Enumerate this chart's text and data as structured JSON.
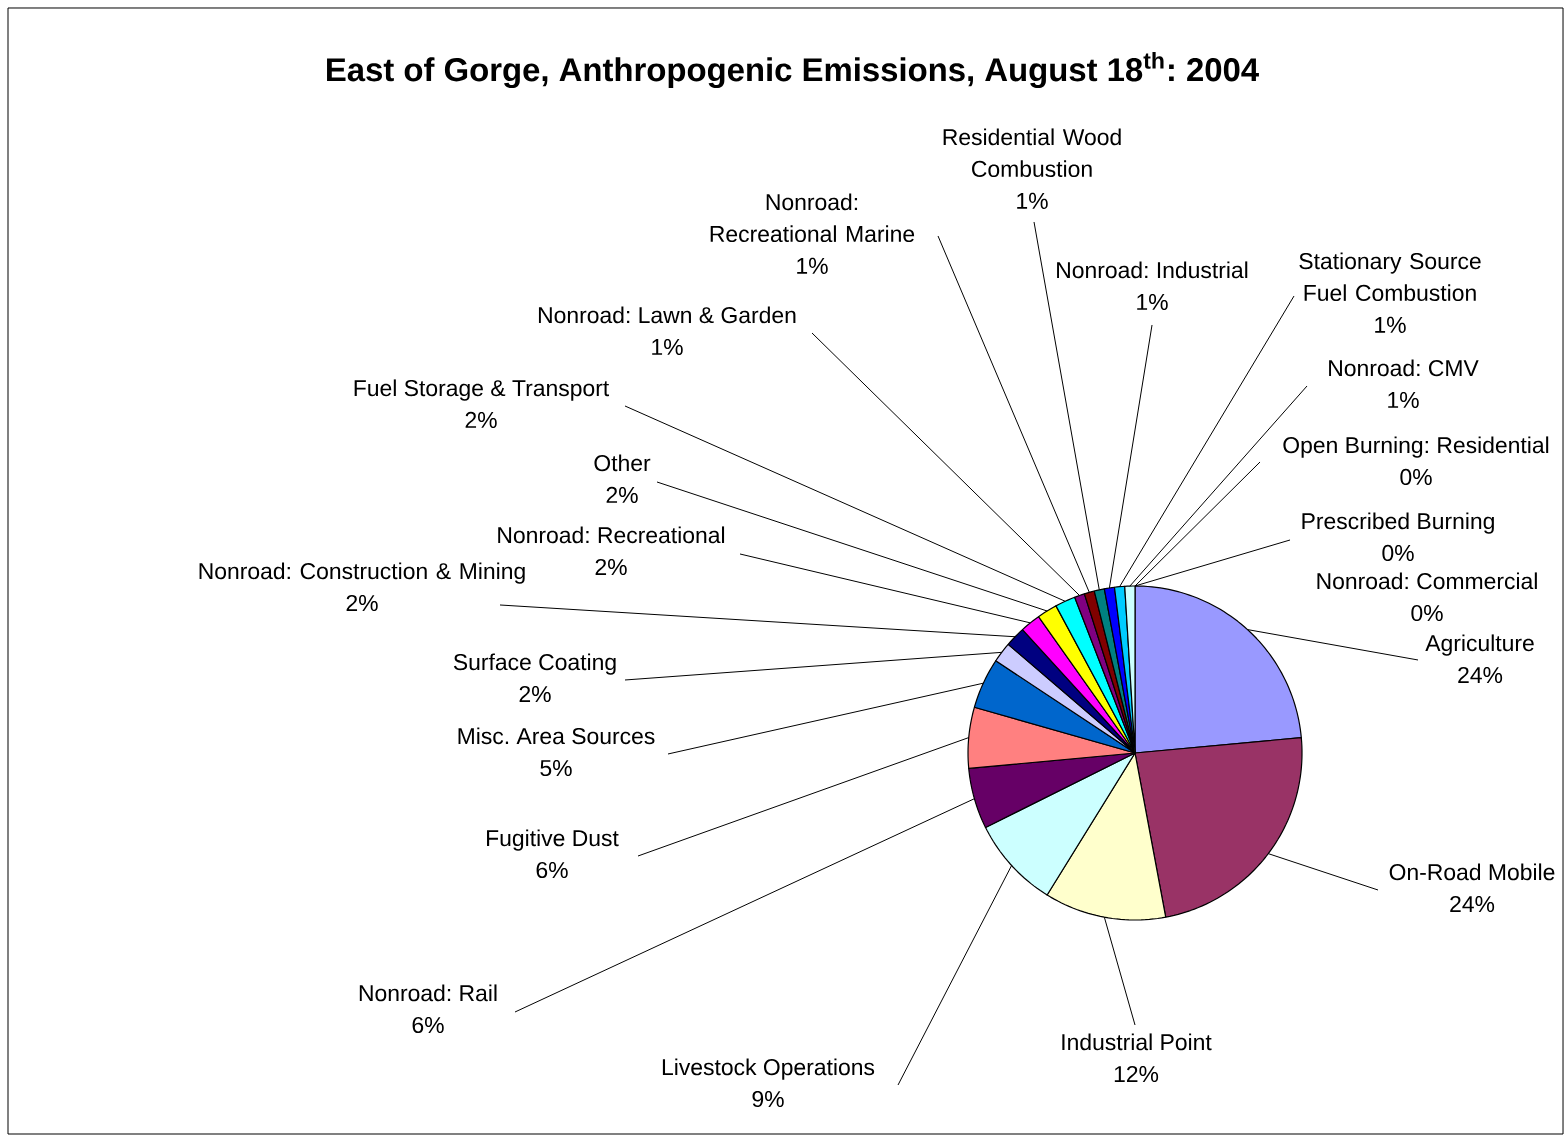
{
  "chart_data": {
    "type": "pie",
    "title": "East of Gorge, Anthropogenic Emissions, August 18$^{th}$: 2004",
    "categories": [
      "Agriculture",
      "On-Road Mobile",
      "Industrial Point",
      "Livestock Operations",
      "Nonroad: Rail",
      "Fugitive Dust",
      "Misc. Area Sources",
      "Surface Coating",
      "Nonroad: Construction & Mining",
      "Nonroad: Recreational",
      "Other",
      "Fuel Storage & Transport",
      "Nonroad: Lawn & Garden",
      "Nonroad: Recreational Marine",
      "Residential Wood Combustion",
      "Nonroad: Industrial",
      "Stationary Source Fuel Combustion",
      "Nonroad: CMV",
      "Open Burning: Residential",
      "Prescribed Burning",
      "Nonroad: Commercial"
    ],
    "values": [
      24,
      24,
      12,
      9,
      6,
      6,
      5,
      2,
      2,
      2,
      2,
      2,
      1,
      1,
      1,
      1,
      1,
      1,
      0,
      0,
      0
    ],
    "colors": [
      "#9999ff",
      "#993366",
      "#ffffcc",
      "#ccffff",
      "#660066",
      "#ff8080",
      "#0066cc",
      "#ccccff",
      "#000080",
      "#ff00ff",
      "#ffff00",
      "#00ffff",
      "#800080",
      "#800000",
      "#008080",
      "#0000ff",
      "#00ccff",
      "#ccffff",
      "#ccffcc",
      "#ffff99",
      "#99ccff"
    ],
    "value_labels": [
      "24%",
      "24%",
      "12%",
      "9%",
      "6%",
      "6%",
      "5%",
      "2%",
      "2%",
      "2%",
      "2%",
      "2%",
      "1%",
      "1%",
      "1%",
      "1%",
      "1%",
      "1%",
      "0%",
      "0%",
      "0%"
    ]
  }
}
